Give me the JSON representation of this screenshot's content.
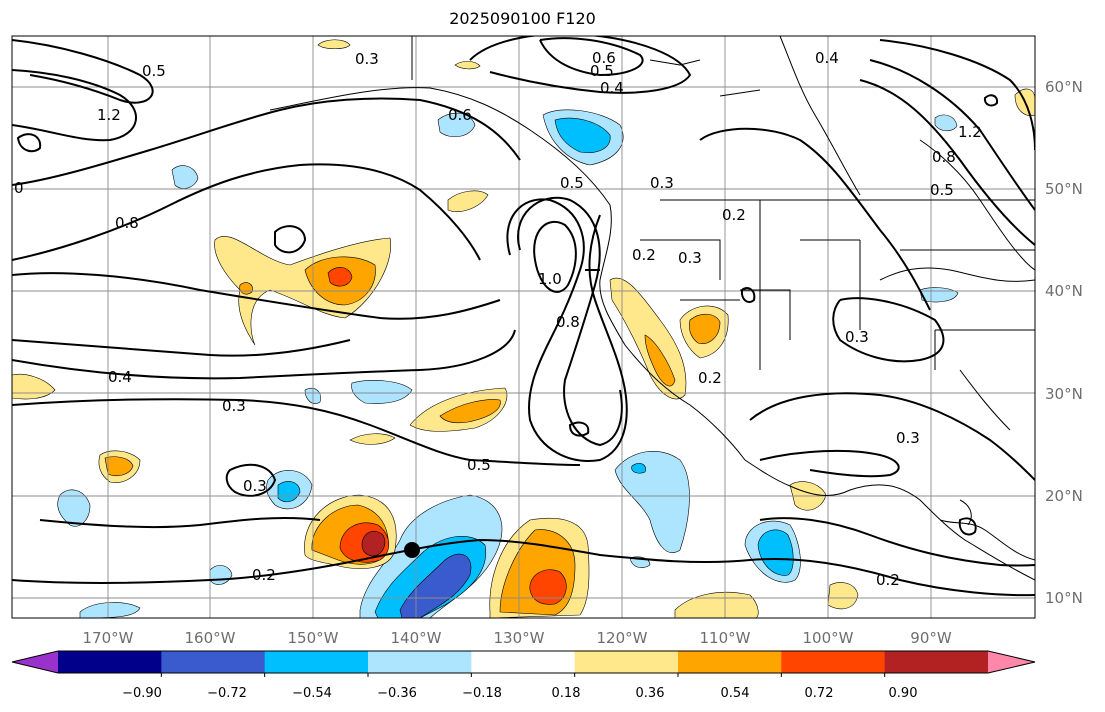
{
  "title": "2025090100 F120",
  "latitude_labels": [
    "60°N",
    "50°N",
    "40°N",
    "30°N",
    "20°N",
    "10°N"
  ],
  "longitude_labels": [
    "170°W",
    "160°W",
    "150°W",
    "140°W",
    "130°W",
    "120°W",
    "110°W",
    "100°W",
    "90°W"
  ],
  "colorbar": {
    "ticks": [
      "−0.90",
      "−0.72",
      "−0.54",
      "−0.36",
      "−0.18",
      "0.18",
      "0.36",
      "0.54",
      "0.72",
      "0.90"
    ],
    "colors": [
      "#9932cc",
      "#00008b",
      "#3a5bcd",
      "#00bfff",
      "#ade4ff",
      "#ffffff",
      "#ffe88c",
      "#ffa500",
      "#ff4500",
      "#b22222",
      "#ff88aa"
    ]
  },
  "contour_labels": [
    "0.3",
    "0.6",
    "0.5",
    "0.4",
    "0.4",
    "1.2",
    "0",
    "0.8",
    "0.3",
    "0.2",
    "0.2",
    "1.0",
    "0.8",
    "0.2",
    "0.3",
    "0.4",
    "0.3",
    "0.5",
    "0.3",
    "0.2",
    "0.3",
    "0.2",
    "0.5",
    "0.8",
    "1.2",
    "0.3",
    "0.6",
    "0.5",
    "0.5"
  ],
  "marker": "black-dot"
}
